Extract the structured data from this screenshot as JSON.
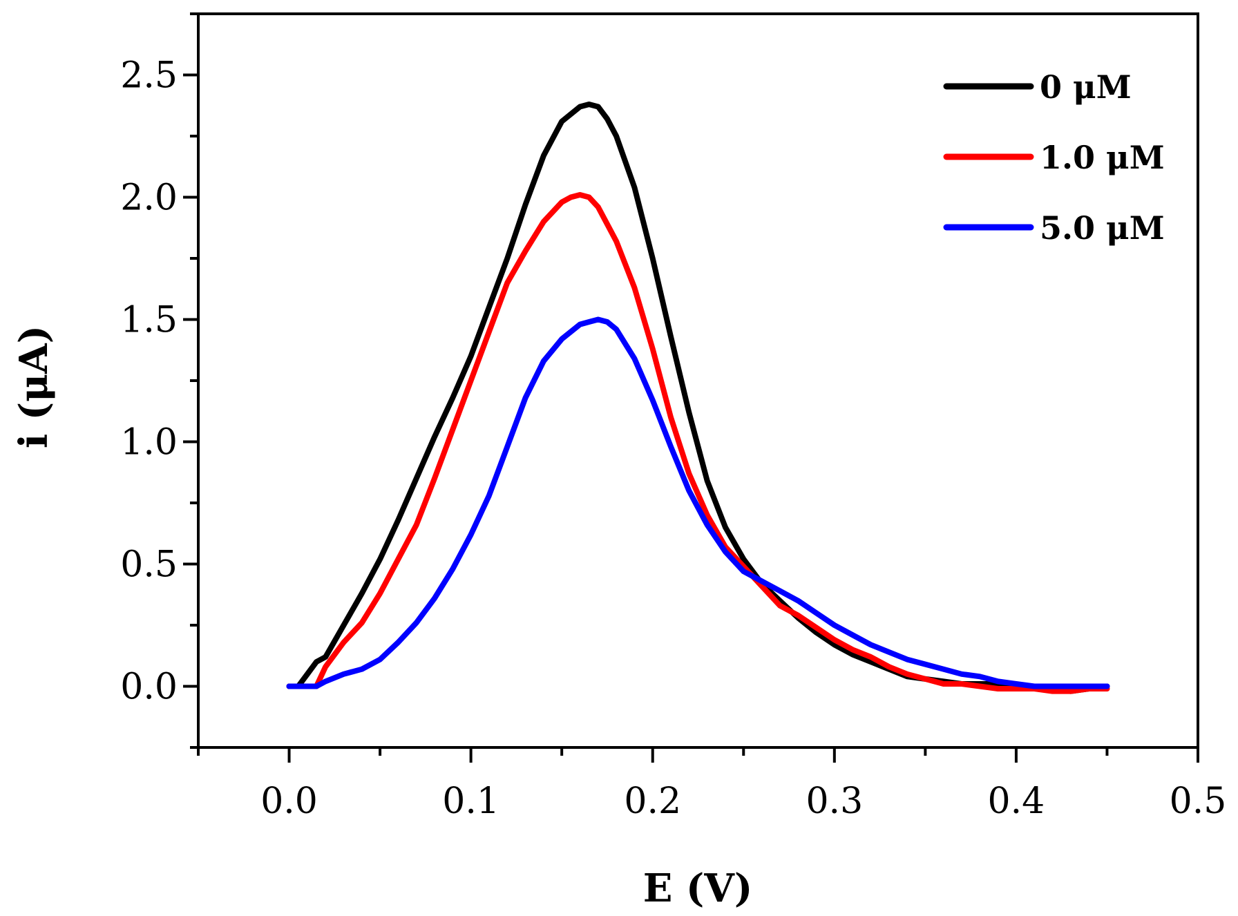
{
  "chart_data": {
    "type": "line",
    "title": "",
    "xlabel": "E (V)",
    "ylabel": "i (μA)",
    "xlim": [
      -0.05,
      0.5
    ],
    "ylim": [
      -0.25,
      2.75
    ],
    "xticks": [
      0.0,
      0.1,
      0.2,
      0.3,
      0.4,
      0.5
    ],
    "xtick_labels": [
      "0.0",
      "0.1",
      "0.2",
      "0.3",
      "0.4",
      "0.5"
    ],
    "yticks": [
      0.0,
      0.5,
      1.0,
      1.5,
      2.0,
      2.5
    ],
    "ytick_labels": [
      "0.0",
      "0.5",
      "1.0",
      "1.5",
      "2.0",
      "2.5"
    ],
    "grid": false,
    "legend_position": "top-right",
    "series": [
      {
        "name": "0 μM",
        "color": "#000000",
        "x": [
          0.0,
          0.005,
          0.01,
          0.015,
          0.02,
          0.03,
          0.04,
          0.05,
          0.06,
          0.07,
          0.08,
          0.09,
          0.1,
          0.11,
          0.12,
          0.13,
          0.14,
          0.15,
          0.16,
          0.165,
          0.17,
          0.175,
          0.18,
          0.19,
          0.2,
          0.21,
          0.22,
          0.23,
          0.24,
          0.25,
          0.26,
          0.27,
          0.28,
          0.29,
          0.3,
          0.31,
          0.32,
          0.33,
          0.34,
          0.35,
          0.36,
          0.37,
          0.38,
          0.39,
          0.4,
          0.41,
          0.42,
          0.43,
          0.44,
          0.45
        ],
        "y": [
          0.0,
          0.0,
          0.05,
          0.1,
          0.12,
          0.25,
          0.38,
          0.52,
          0.68,
          0.85,
          1.02,
          1.18,
          1.35,
          1.55,
          1.75,
          1.97,
          2.17,
          2.31,
          2.37,
          2.38,
          2.37,
          2.32,
          2.25,
          2.04,
          1.75,
          1.43,
          1.12,
          0.84,
          0.65,
          0.52,
          0.42,
          0.35,
          0.28,
          0.22,
          0.17,
          0.13,
          0.1,
          0.07,
          0.04,
          0.03,
          0.02,
          0.01,
          0.01,
          0.01,
          0.0,
          -0.01,
          -0.01,
          -0.02,
          -0.01,
          0.0
        ]
      },
      {
        "name": "1.0 μM",
        "color": "#ff0000",
        "x": [
          0.0,
          0.005,
          0.01,
          0.015,
          0.02,
          0.03,
          0.04,
          0.05,
          0.06,
          0.07,
          0.08,
          0.09,
          0.1,
          0.11,
          0.12,
          0.13,
          0.14,
          0.15,
          0.155,
          0.16,
          0.165,
          0.17,
          0.18,
          0.19,
          0.2,
          0.21,
          0.22,
          0.23,
          0.24,
          0.25,
          0.26,
          0.27,
          0.28,
          0.29,
          0.3,
          0.31,
          0.32,
          0.33,
          0.34,
          0.35,
          0.36,
          0.37,
          0.38,
          0.39,
          0.4,
          0.41,
          0.42,
          0.43,
          0.44,
          0.45
        ],
        "y": [
          0.0,
          0.0,
          0.0,
          0.0,
          0.08,
          0.18,
          0.26,
          0.38,
          0.52,
          0.66,
          0.85,
          1.05,
          1.25,
          1.45,
          1.65,
          1.78,
          1.9,
          1.98,
          2.0,
          2.01,
          2.0,
          1.96,
          1.82,
          1.63,
          1.38,
          1.1,
          0.87,
          0.7,
          0.57,
          0.49,
          0.41,
          0.33,
          0.29,
          0.24,
          0.19,
          0.15,
          0.12,
          0.08,
          0.05,
          0.03,
          0.01,
          0.01,
          0.0,
          -0.01,
          -0.01,
          -0.01,
          -0.02,
          -0.02,
          -0.01,
          -0.01
        ]
      },
      {
        "name": "5.0 μM",
        "color": "#0000ff",
        "x": [
          0.0,
          0.005,
          0.01,
          0.015,
          0.02,
          0.03,
          0.04,
          0.05,
          0.06,
          0.07,
          0.08,
          0.09,
          0.1,
          0.11,
          0.12,
          0.13,
          0.14,
          0.15,
          0.16,
          0.165,
          0.17,
          0.175,
          0.18,
          0.19,
          0.2,
          0.21,
          0.22,
          0.23,
          0.24,
          0.25,
          0.26,
          0.27,
          0.28,
          0.29,
          0.3,
          0.31,
          0.32,
          0.33,
          0.34,
          0.35,
          0.36,
          0.37,
          0.38,
          0.39,
          0.4,
          0.41,
          0.42,
          0.43,
          0.44,
          0.45
        ],
        "y": [
          0.0,
          0.0,
          0.0,
          0.0,
          0.02,
          0.05,
          0.07,
          0.11,
          0.18,
          0.26,
          0.36,
          0.48,
          0.62,
          0.78,
          0.98,
          1.18,
          1.33,
          1.42,
          1.48,
          1.49,
          1.5,
          1.49,
          1.46,
          1.34,
          1.17,
          0.98,
          0.8,
          0.66,
          0.55,
          0.47,
          0.43,
          0.39,
          0.35,
          0.3,
          0.25,
          0.21,
          0.17,
          0.14,
          0.11,
          0.09,
          0.07,
          0.05,
          0.04,
          0.02,
          0.01,
          0.0,
          0.0,
          0.0,
          0.0,
          0.0
        ]
      }
    ]
  }
}
